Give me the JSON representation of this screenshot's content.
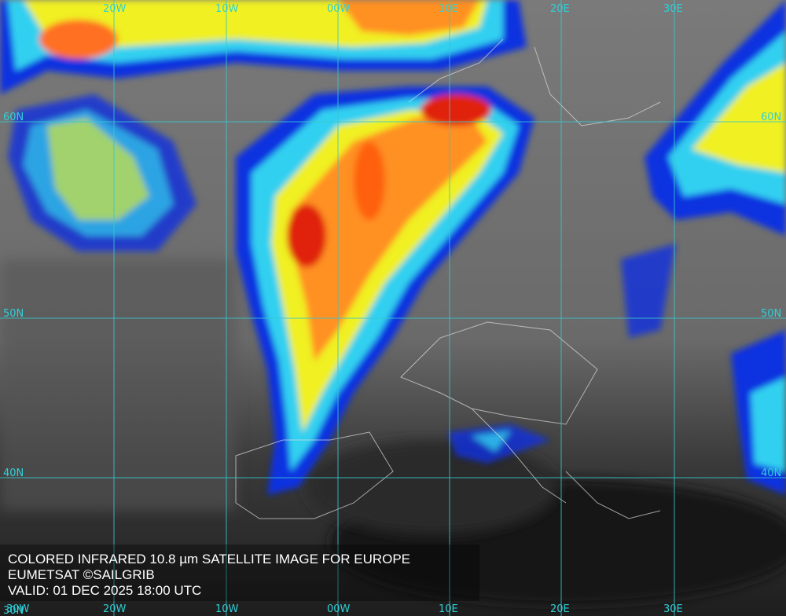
{
  "map": {
    "caption": [
      "COLORED INFRARED 10.8 µm SATELLITE IMAGE FOR EUROPE",
      "EUMETSAT ©SAILGRIB",
      "VALID:  01 DEC 2025 18:00 UTC"
    ],
    "longitude_labels": [
      "30W",
      "20W",
      "10W",
      "00W",
      "10E",
      "20E",
      "30E"
    ],
    "latitude_labels": [
      "60N",
      "50N",
      "40N",
      "30N"
    ]
  }
}
